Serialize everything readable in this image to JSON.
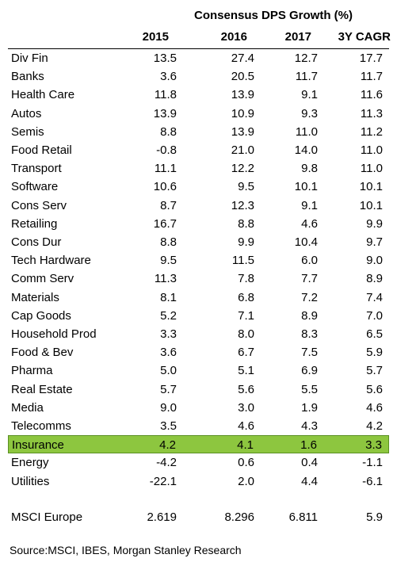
{
  "chart_data": {
    "type": "table",
    "title": "Consensus DPS Growth (%)",
    "columns": [
      "2015",
      "2016",
      "2017",
      "3Y CAGR"
    ],
    "rows": [
      {
        "label": "Div Fin",
        "values": [
          "13.5",
          "27.4",
          "12.7",
          "17.7"
        ]
      },
      {
        "label": "Banks",
        "values": [
          "3.6",
          "20.5",
          "11.7",
          "11.7"
        ]
      },
      {
        "label": "Health Care",
        "values": [
          "11.8",
          "13.9",
          "9.1",
          "11.6"
        ]
      },
      {
        "label": "Autos",
        "values": [
          "13.9",
          "10.9",
          "9.3",
          "11.3"
        ]
      },
      {
        "label": "Semis",
        "values": [
          "8.8",
          "13.9",
          "11.0",
          "11.2"
        ]
      },
      {
        "label": "Food Retail",
        "values": [
          "-0.8",
          "21.0",
          "14.0",
          "11.0"
        ]
      },
      {
        "label": "Transport",
        "values": [
          "11.1",
          "12.2",
          "9.8",
          "11.0"
        ]
      },
      {
        "label": "Software",
        "values": [
          "10.6",
          "9.5",
          "10.1",
          "10.1"
        ]
      },
      {
        "label": "Cons Serv",
        "values": [
          "8.7",
          "12.3",
          "9.1",
          "10.1"
        ]
      },
      {
        "label": "Retailing",
        "values": [
          "16.7",
          "8.8",
          "4.6",
          "9.9"
        ]
      },
      {
        "label": "Cons Dur",
        "values": [
          "8.8",
          "9.9",
          "10.4",
          "9.7"
        ]
      },
      {
        "label": "Tech Hardware",
        "values": [
          "9.5",
          "11.5",
          "6.0",
          "9.0"
        ]
      },
      {
        "label": "Comm Serv",
        "values": [
          "11.3",
          "7.8",
          "7.7",
          "8.9"
        ]
      },
      {
        "label": "Materials",
        "values": [
          "8.1",
          "6.8",
          "7.2",
          "7.4"
        ]
      },
      {
        "label": "Cap Goods",
        "values": [
          "5.2",
          "7.1",
          "8.9",
          "7.0"
        ]
      },
      {
        "label": "Household Prod",
        "values": [
          "3.3",
          "8.0",
          "8.3",
          "6.5"
        ]
      },
      {
        "label": "Food & Bev",
        "values": [
          "3.6",
          "6.7",
          "7.5",
          "5.9"
        ]
      },
      {
        "label": "Pharma",
        "values": [
          "5.0",
          "5.1",
          "6.9",
          "5.7"
        ]
      },
      {
        "label": "Real Estate",
        "values": [
          "5.7",
          "5.6",
          "5.5",
          "5.6"
        ]
      },
      {
        "label": "Media",
        "values": [
          "9.0",
          "3.0",
          "1.9",
          "4.6"
        ]
      },
      {
        "label": "Telecomms",
        "values": [
          "3.5",
          "4.6",
          "4.3",
          "4.2"
        ]
      },
      {
        "label": "Insurance",
        "values": [
          "4.2",
          "4.1",
          "1.6",
          "3.3"
        ],
        "highlight": true
      },
      {
        "label": "Energy",
        "values": [
          "-4.2",
          "0.6",
          "0.4",
          "-1.1"
        ]
      },
      {
        "label": "Utilities",
        "values": [
          "-22.1",
          "2.0",
          "4.4",
          "-6.1"
        ]
      }
    ],
    "total": {
      "label": "MSCI Europe",
      "values": [
        "2.619",
        "8.296",
        "6.811",
        "5.9"
      ]
    },
    "highlight_color": "#8dc63f"
  },
  "source": "Source:MSCI, IBES, Morgan Stanley Research"
}
